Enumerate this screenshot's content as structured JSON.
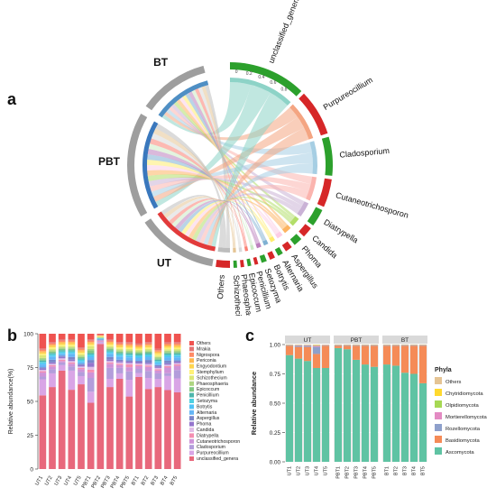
{
  "panels": {
    "a": "a",
    "b": "b",
    "c": "c"
  },
  "chord": {
    "groups": [
      "BT",
      "PBT",
      "UT"
    ],
    "genera": [
      "unclassified_genera",
      "Purpureocillium",
      "Cladosporium",
      "Cutaneotrichosporon",
      "Diatrypella",
      "Candida",
      "Phoma",
      "Aspergillus",
      "Alternaria",
      "Botrytis",
      "Setozyma",
      "Penicillium",
      "Epicoccum",
      "Phaeosphaeria",
      "Schizothecium",
      "Others"
    ],
    "axis_ticks": [
      "0",
      "0.2",
      "0.4",
      "0.6",
      "0.8"
    ],
    "colors": {
      "unclassified_genera": "#8dd3c7",
      "Purpureocillium": "#f4a582",
      "Cladosporium": "#a6cee3",
      "Cutaneotrichosporon": "#fbb4ae",
      "Diatrypella": "#cab2d6",
      "Candida": "#b3de69",
      "Phoma": "#fdb462",
      "Aspergillus": "#fccde5",
      "Alternaria": "#ffed6f",
      "Botrytis": "#80b1d3",
      "Setozyma": "#bc80bd",
      "Penicillium": "#ccebc5",
      "Epicoccum": "#fb8072",
      "Phaeosphaeria": "#d9d9d9",
      "Schizothecium": "#e5c494",
      "Others": "#bdbdbd"
    }
  },
  "chart_data": [
    {
      "type": "bar",
      "panel": "b",
      "ylabel": "Relative abundance(%)",
      "ylim": [
        0,
        100
      ],
      "yticks": [
        "0",
        "25",
        "50",
        "75",
        "100"
      ],
      "categories": [
        "UT1",
        "UT2",
        "UT3",
        "UT4",
        "UT5",
        "PBT1",
        "PBT2",
        "PBT3",
        "PBT4",
        "PBT5",
        "BT1",
        "BT2",
        "BT3",
        "BT4",
        "BT5"
      ],
      "legend_placement": "right",
      "series": [
        {
          "name": "unclassified_genera",
          "color": "#e8687c",
          "values": [
            55,
            60,
            72,
            58,
            62,
            48,
            93,
            60,
            66,
            52,
            68,
            58,
            60,
            56,
            55
          ]
        },
        {
          "name": "Purpureocillium",
          "color": "#d9a5e6",
          "values": [
            12,
            10,
            4,
            14,
            6,
            8,
            1,
            6,
            4,
            12,
            3,
            8,
            6,
            10,
            10
          ]
        },
        {
          "name": "Cladosporium",
          "color": "#b39ddb",
          "values": [
            2,
            3,
            2,
            3,
            3,
            10,
            0.5,
            8,
            4,
            6,
            3,
            5,
            4,
            2,
            6
          ]
        },
        {
          "name": "Cutaneotrichosporon",
          "color": "#ce93d8",
          "values": [
            3,
            2,
            1,
            2,
            2,
            4,
            0.5,
            3,
            2,
            3,
            2,
            3,
            2,
            4,
            3
          ]
        },
        {
          "name": "Diatrypella",
          "color": "#f48fb1",
          "values": [
            1,
            1,
            1,
            1,
            1,
            2,
            0.3,
            1,
            1,
            2,
            1,
            1,
            1,
            1,
            1
          ]
        },
        {
          "name": "Candida",
          "color": "#e1bee7",
          "values": [
            1,
            1,
            1,
            1,
            1,
            2,
            0.3,
            1,
            1,
            1,
            1,
            1,
            1,
            1,
            1
          ]
        },
        {
          "name": "Phoma",
          "color": "#9575cd",
          "values": [
            1,
            1,
            1,
            1,
            1,
            3,
            0.3,
            1,
            1,
            1,
            1,
            1,
            1,
            1,
            1
          ]
        },
        {
          "name": "Aspergillus",
          "color": "#7986cb",
          "values": [
            1,
            2,
            1,
            2,
            1,
            2,
            0.3,
            2,
            1,
            1,
            1,
            2,
            1,
            2,
            1
          ]
        },
        {
          "name": "Alternaria",
          "color": "#64b5f6",
          "values": [
            2,
            2,
            1,
            2,
            1,
            2,
            0.3,
            2,
            2,
            2,
            2,
            2,
            1,
            2,
            2
          ]
        },
        {
          "name": "Botrytis",
          "color": "#4fc3f7",
          "values": [
            1,
            1,
            1,
            1,
            1,
            1,
            0.3,
            1,
            1,
            1,
            1,
            1,
            1,
            1,
            1
          ]
        },
        {
          "name": "Setozyma",
          "color": "#4dd0e1",
          "values": [
            1,
            1,
            1,
            1,
            1,
            1,
            0.3,
            1,
            1,
            1,
            1,
            1,
            1,
            1,
            1
          ]
        },
        {
          "name": "Penicillium",
          "color": "#4db6ac",
          "values": [
            1,
            1,
            1,
            1,
            1,
            1,
            0.3,
            1,
            1,
            1,
            1,
            1,
            1,
            1,
            1
          ]
        },
        {
          "name": "Epicoccum",
          "color": "#81c784",
          "values": [
            1,
            1,
            1,
            1,
            1,
            2,
            0.3,
            1,
            1,
            1,
            1,
            1,
            1,
            1,
            1
          ]
        },
        {
          "name": "Phaeosphaeria",
          "color": "#aed581",
          "values": [
            1,
            1,
            1,
            1,
            1,
            1,
            0.3,
            1,
            1,
            1,
            1,
            1,
            1,
            1,
            1
          ]
        },
        {
          "name": "Schizothecium",
          "color": "#dce775",
          "values": [
            2,
            1,
            1,
            1,
            1,
            2,
            0.3,
            1,
            1,
            1,
            1,
            1,
            1,
            1,
            1
          ]
        },
        {
          "name": "Stemphylium",
          "color": "#fff176",
          "values": [
            1,
            1,
            1,
            1,
            1,
            1,
            0.3,
            1,
            1,
            1,
            1,
            1,
            1,
            1,
            1
          ]
        },
        {
          "name": "Engyodontium",
          "color": "#ffd54f",
          "values": [
            1,
            1,
            1,
            1,
            1,
            1,
            0.3,
            1,
            1,
            1,
            1,
            1,
            1,
            1,
            1
          ]
        },
        {
          "name": "Periconia",
          "color": "#ffb74d",
          "values": [
            1,
            1,
            1,
            1,
            1,
            1,
            0.3,
            1,
            1,
            1,
            1,
            1,
            1,
            1,
            1
          ]
        },
        {
          "name": "Nigrospora",
          "color": "#ff8a65",
          "values": [
            1,
            1,
            1,
            1,
            1,
            1,
            0.3,
            1,
            1,
            1,
            1,
            1,
            1,
            1,
            1
          ]
        },
        {
          "name": "Mrakia",
          "color": "#e57373",
          "values": [
            1,
            1,
            1,
            1,
            1,
            1,
            0.3,
            1,
            1,
            1,
            1,
            1,
            1,
            1,
            1
          ]
        },
        {
          "name": "Others",
          "color": "#ef5350",
          "values": [
            11,
            6,
            4,
            4,
            10,
            4,
            0.8,
            4,
            6,
            6,
            7,
            6,
            11,
            6,
            6
          ]
        }
      ]
    },
    {
      "type": "bar",
      "panel": "c",
      "ylabel": "Relative abundance",
      "ylim": [
        0,
        1
      ],
      "yticks": [
        "0.00",
        "0.25",
        "0.50",
        "0.75",
        "1.00"
      ],
      "facets": [
        "UT",
        "PBT",
        "BT"
      ],
      "legend_title": "Phyla",
      "legend_placement": "right",
      "categories": [
        "UT1",
        "UT2",
        "UT3",
        "UT4",
        "UT5",
        "PBT1",
        "PBT2",
        "PBT3",
        "PBT4",
        "PBT5",
        "BT1",
        "BT2",
        "BT3",
        "BT4",
        "BT5"
      ],
      "series": [
        {
          "name": "Ascomycota",
          "color": "#5fc3a3",
          "values": [
            0.91,
            0.88,
            0.86,
            0.8,
            0.8,
            0.97,
            0.96,
            0.87,
            0.83,
            0.81,
            0.83,
            0.82,
            0.76,
            0.75,
            0.67
          ]
        },
        {
          "name": "Basidiomycota",
          "color": "#f58b57",
          "values": [
            0.08,
            0.1,
            0.12,
            0.12,
            0.19,
            0.02,
            0.03,
            0.12,
            0.16,
            0.18,
            0.16,
            0.17,
            0.23,
            0.24,
            0.32
          ]
        },
        {
          "name": "Rozellomycota",
          "color": "#8ea0cb",
          "values": [
            0.005,
            0.01,
            0.01,
            0.06,
            0.004,
            0.005,
            0.005,
            0.005,
            0.005,
            0.005,
            0.005,
            0.005,
            0.005,
            0.005,
            0.005
          ]
        },
        {
          "name": "Mortierellomycota",
          "color": "#e38bc3",
          "values": [
            0.003,
            0.005,
            0.005,
            0.01,
            0.003,
            0.003,
            0.003,
            0.003,
            0.003,
            0.003,
            0.003,
            0.003,
            0.003,
            0.003,
            0.003
          ]
        },
        {
          "name": "Olpidiomycota",
          "color": "#a6d854",
          "values": [
            0.001,
            0.002,
            0.002,
            0.004,
            0.001,
            0.001,
            0.001,
            0.001,
            0.001,
            0.001,
            0.001,
            0.001,
            0.001,
            0.001,
            0.001
          ]
        },
        {
          "name": "Chytridiomycota",
          "color": "#ffd92f",
          "values": [
            0.001,
            0.001,
            0.001,
            0.002,
            0.001,
            0.001,
            0.001,
            0.001,
            0.001,
            0.001,
            0.001,
            0.001,
            0.001,
            0.001,
            0.001
          ]
        },
        {
          "name": "Others",
          "color": "#e5c494",
          "values": [
            0.001,
            0.002,
            0.002,
            0.004,
            0.001,
            0.001,
            0.001,
            0.001,
            0.001,
            0.001,
            0.001,
            0.001,
            0.001,
            0.001,
            0.001
          ]
        }
      ]
    }
  ]
}
